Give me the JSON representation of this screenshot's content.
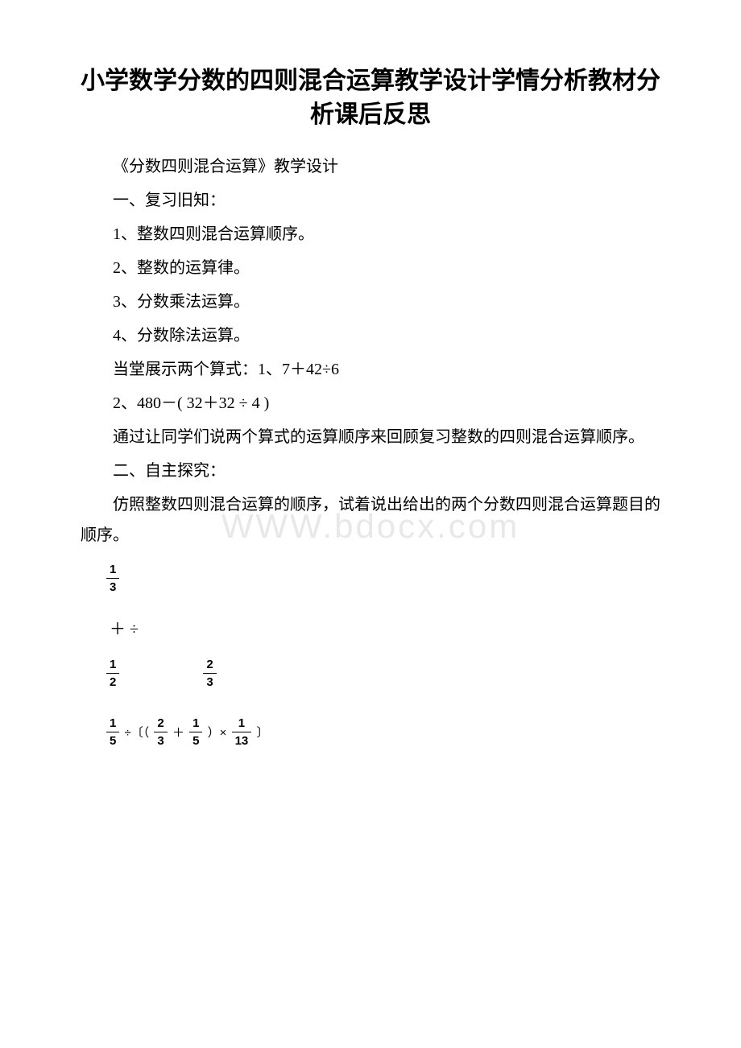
{
  "watermark": "WWW.bdocx.com",
  "title": "小学数学分数的四则混合运算教学设计学情分析教材分析课后反思",
  "p1": "《分数四则混合运算》教学设计",
  "p2": "一、复习旧知：",
  "p3": "1、整数四则混合运算顺序。",
  "p4": "2、整数的运算律。",
  "p5": "3、分数乘法运算。",
  "p6": "4、分数除法运算。",
  "p7": "当堂展示两个算式：1、7＋42÷6",
  "p8": " 2、480－( 32＋32 ÷ 4 )",
  "p9": "通过让同学们说两个算式的运算顺序来回顾复习整数的四则混合运算顺序。",
  "p10": "二、自主探究：",
  "p11": "仿照整数四则混合运算的顺序，试着说出给出的两个分数四则混合运算题目的顺序。",
  "frac1": {
    "num": "1",
    "den": "3"
  },
  "ops": "＋  ÷",
  "frac2": {
    "num": "1",
    "den": "2"
  },
  "frac3": {
    "num": "2",
    "den": "3"
  },
  "expr": {
    "f1": {
      "num": "1",
      "den": "5"
    },
    "op1": "÷〔（",
    "f2": {
      "num": "2",
      "den": "3"
    },
    "op2": "＋",
    "f3": {
      "num": "1",
      "den": "5"
    },
    "op3": "）×",
    "f4": {
      "num": "1",
      "den": "13"
    },
    "op4": "〕"
  }
}
